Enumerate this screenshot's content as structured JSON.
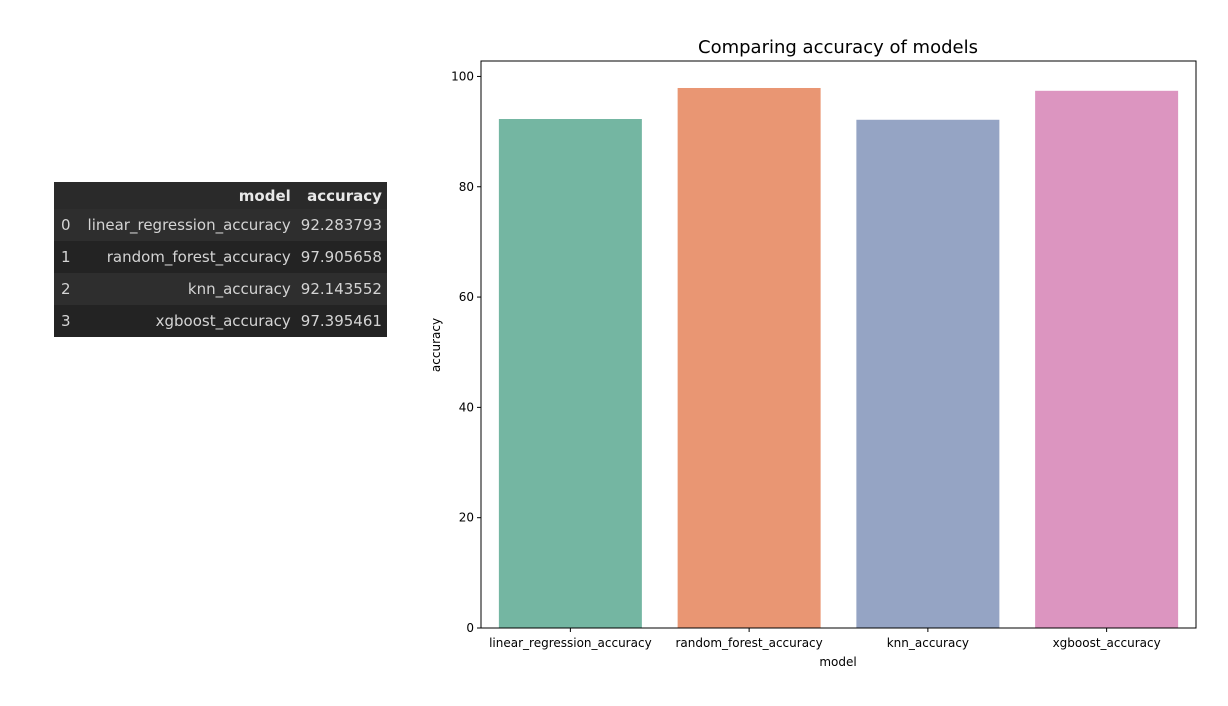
{
  "table": {
    "columns": [
      "",
      "model",
      "accuracy"
    ],
    "rows": [
      {
        "index": "0",
        "model": "linear_regression_accuracy",
        "accuracy": "92.283793"
      },
      {
        "index": "1",
        "model": "random_forest_accuracy",
        "accuracy": "97.905658"
      },
      {
        "index": "2",
        "model": "knn_accuracy",
        "accuracy": "92.143552"
      },
      {
        "index": "3",
        "model": "xgboost_accuracy",
        "accuracy": "97.395461"
      }
    ]
  },
  "chart_data": {
    "type": "bar",
    "title": "Comparing accuracy of models",
    "xlabel": "model",
    "ylabel": "accuracy",
    "categories": [
      "linear_regression_accuracy",
      "random_forest_accuracy",
      "knn_accuracy",
      "xgboost_accuracy"
    ],
    "values": [
      92.283793,
      97.905658,
      92.143552,
      97.395461
    ],
    "colors": [
      "#74b6a2",
      "#e99673",
      "#95a4c4",
      "#dc95c0"
    ],
    "ylim": [
      0,
      102.8
    ],
    "yticks": [
      0,
      20,
      40,
      60,
      80,
      100
    ],
    "grid": false,
    "legend": "none"
  }
}
